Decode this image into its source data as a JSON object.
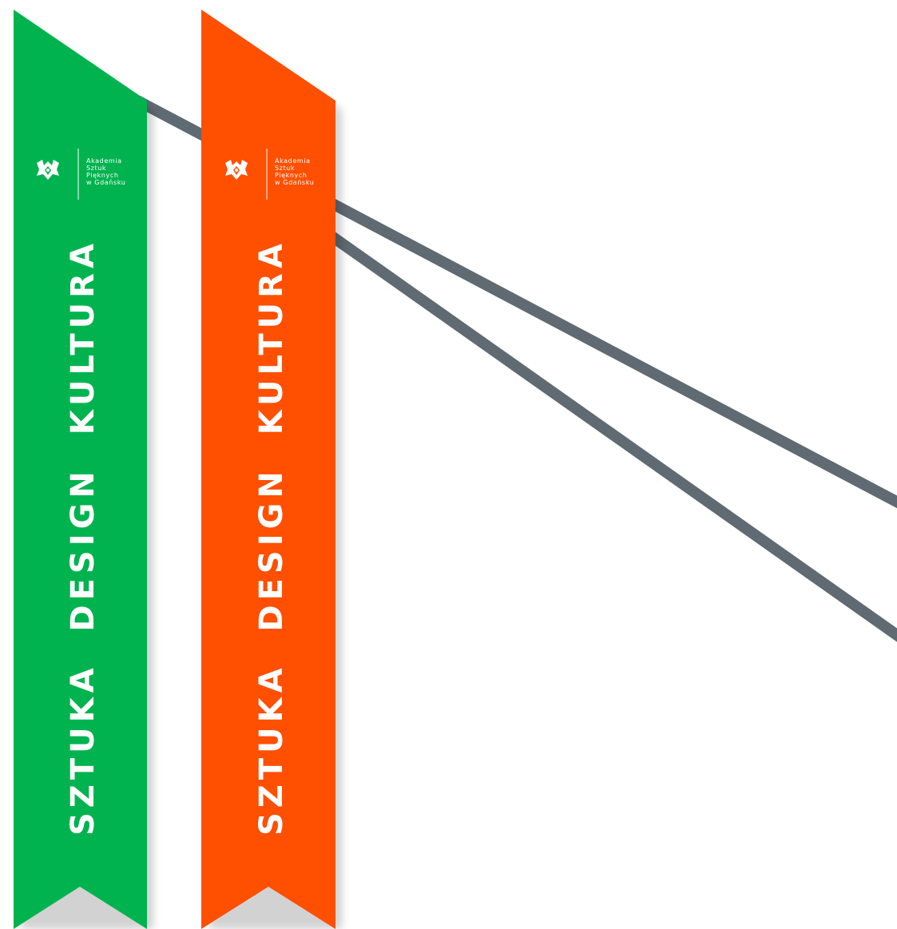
{
  "colors": {
    "background": "#ffffff",
    "strap": "#5f6a72",
    "ribbon_green": "#00b34f",
    "ribbon_orange": "#ff4f00",
    "text": "#ffffff"
  },
  "ribbons": [
    {
      "color": "#00b34f",
      "logo_icon": "crest-icon",
      "logo_lines": [
        "Akademia",
        "Sztuk",
        "Pięknych",
        "w Gdańsku"
      ],
      "tagline": "SZTUKA  DESIGN  KULTURA"
    },
    {
      "color": "#ff4f00",
      "logo_icon": "crest-icon",
      "logo_lines": [
        "Akademia",
        "Sztuk",
        "Pięknych",
        "w Gdańsku"
      ],
      "tagline": "SZTUKA  DESIGN  KULTURA"
    }
  ]
}
